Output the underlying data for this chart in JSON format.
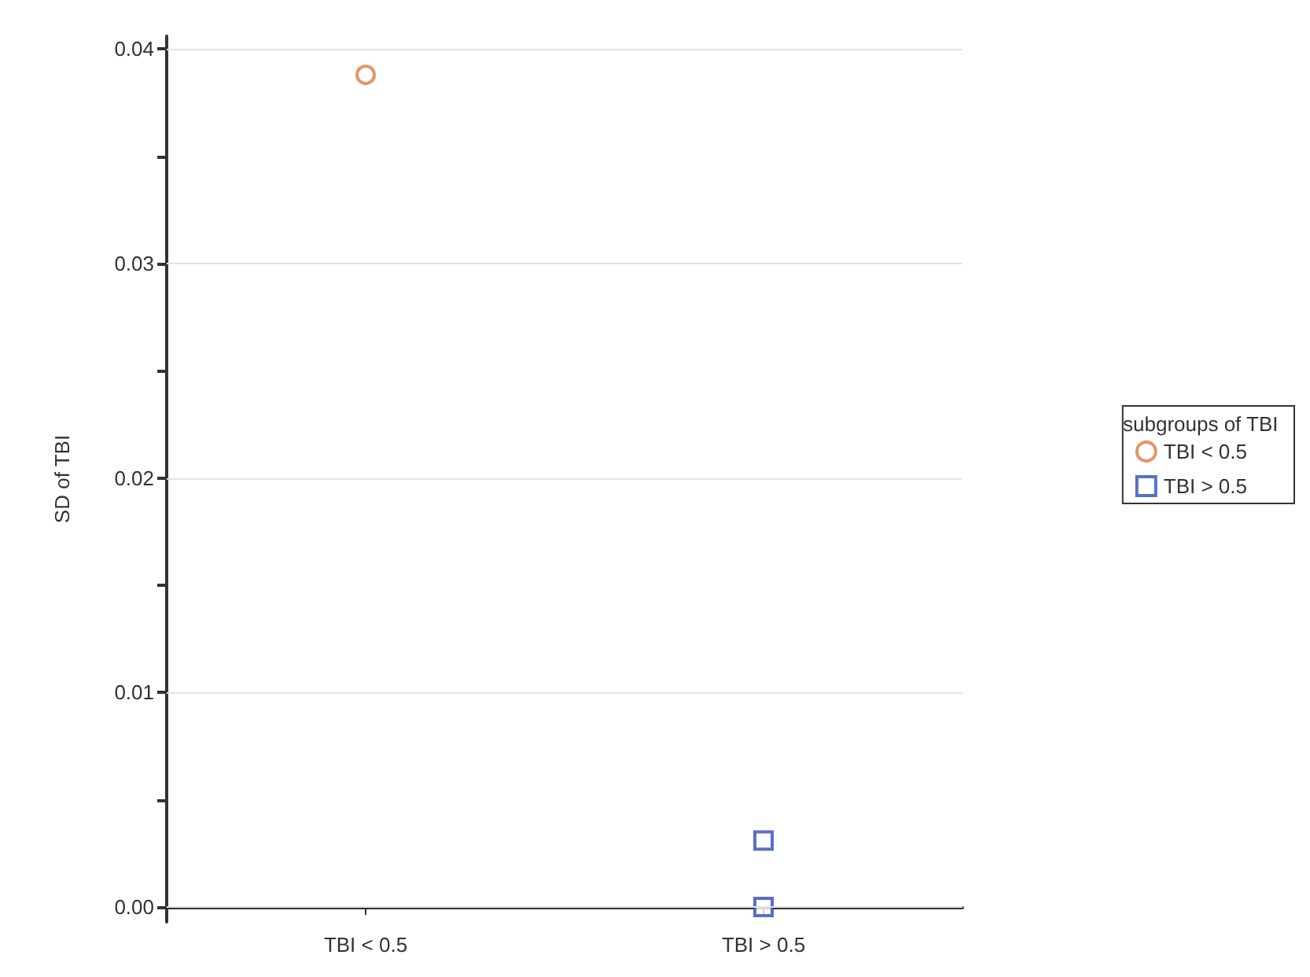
{
  "chart_data": {
    "type": "scatter",
    "categories": [
      "TBI < 0.5",
      "TBI > 0.5"
    ],
    "ylabel": "SD of TBI",
    "legend_title": "subgroups of TBI",
    "legend": "right",
    "grid": "y",
    "ylim": [
      -0.0007,
      0.0406
    ],
    "yticks": [
      {
        "value": 0,
        "label": "0.00"
      },
      {
        "value": 0.005,
        "label": null
      },
      {
        "value": 0.01,
        "label": "0.01"
      },
      {
        "value": 0.015,
        "label": null
      },
      {
        "value": 0.02,
        "label": "0.02"
      },
      {
        "value": 0.025,
        "label": null
      },
      {
        "value": 0.03,
        "label": "0.03"
      },
      {
        "value": 0.035,
        "label": null
      },
      {
        "value": 0.04,
        "label": "0.04"
      }
    ],
    "series": [
      {
        "name": "TBI < 0.5",
        "color": "#e07b39",
        "marker": "circle",
        "x": [
          "TBI < 0.5"
        ],
        "values": [
          0.0388
        ]
      },
      {
        "name": "TBI > 0.5",
        "color": "#2e4bb5",
        "marker": "square",
        "x": [
          "TBI > 0.5",
          "TBI > 0.5"
        ],
        "values": [
          0.0031,
          0.0
        ]
      }
    ]
  }
}
